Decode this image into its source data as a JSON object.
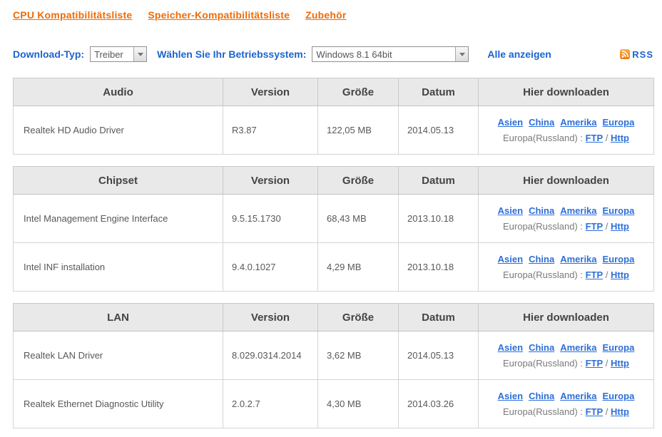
{
  "nav": {
    "links": [
      {
        "label": "CPU Kompatibilitätsliste"
      },
      {
        "label": "Speicher-Kompatibilitätsliste"
      },
      {
        "label": "Zubehör"
      }
    ]
  },
  "controls": {
    "download_type_label": "Download-Typ:",
    "download_type_value": "Treiber",
    "os_label": "Wählen Sie Ihr Betriebssystem:",
    "os_value": "Windows 8.1 64bit",
    "show_all_label": "Alle anzeigen",
    "rss_label": "RSS",
    "rss_icon": "rss-feed-icon"
  },
  "columns": {
    "version": "Version",
    "size": "Größe",
    "date": "Datum",
    "download": "Hier downloaden"
  },
  "download_links": {
    "regions": [
      "Asien",
      "China",
      "Amerika",
      "Europa"
    ],
    "russia_prefix": "Europa(Russland) : ",
    "ftp_label": "FTP",
    "separator": " / ",
    "http_label": "Http"
  },
  "tables": [
    {
      "category": "Audio",
      "rows": [
        {
          "name": "Realtek HD Audio Driver",
          "version": "R3.87",
          "size": "122,05 MB",
          "date": "2014.05.13"
        }
      ]
    },
    {
      "category": "Chipset",
      "rows": [
        {
          "name": "Intel Management Engine Interface",
          "version": "9.5.15.1730",
          "size": "68,43 MB",
          "date": "2013.10.18"
        },
        {
          "name": "Intel INF installation",
          "version": "9.4.0.1027",
          "size": "4,29 MB",
          "date": "2013.10.18"
        }
      ]
    },
    {
      "category": "LAN",
      "rows": [
        {
          "name": "Realtek LAN Driver",
          "version": "8.029.0314.2014",
          "size": "3,62 MB",
          "date": "2014.05.13"
        },
        {
          "name": "Realtek Ethernet Diagnostic Utility",
          "version": "2.0.2.7",
          "size": "4,30 MB",
          "date": "2014.03.26"
        }
      ]
    }
  ],
  "colors": {
    "accent_orange": "#EE6B06",
    "label_blue": "#1C64CE",
    "link_blue": "#2D6FD8",
    "header_bg": "#E9E9E9",
    "body_text": "#585858",
    "muted_text": "#7A7A7A",
    "border": "#C9C9C9"
  }
}
